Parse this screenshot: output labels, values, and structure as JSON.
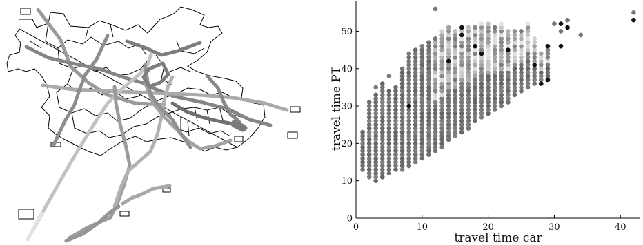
{
  "colors": {
    "background": "#ffffff",
    "axis": "#000000",
    "district_outline": "#000000",
    "point_dark": "#111111",
    "point_mid": "#777777",
    "point_light": "#dddddd"
  },
  "map_panel": {
    "type": "network-map",
    "content": "district boundaries overlaid with transit route lines drawn in shades of gray"
  },
  "chart_data": {
    "type": "scatter",
    "title": "",
    "xlabel": "travel time car",
    "ylabel": "travel time PT",
    "xlim": [
      0,
      43
    ],
    "ylim": [
      0,
      58
    ],
    "xticks": [
      0,
      10,
      20,
      30,
      40
    ],
    "yticks": [
      0,
      10,
      20,
      30,
      40,
      50
    ],
    "grid": false,
    "legend": "none",
    "point_spacing_y": 1,
    "columns": [
      {
        "x": 1,
        "y_min": 13,
        "y_max": 23
      },
      {
        "x": 2,
        "y_min": 11,
        "y_max": 31
      },
      {
        "x": 3,
        "y_min": 10,
        "y_max": 33
      },
      {
        "x": 4,
        "y_min": 11,
        "y_max": 36
      },
      {
        "x": 5,
        "y_min": 12,
        "y_max": 34
      },
      {
        "x": 6,
        "y_min": 13,
        "y_max": 35
      },
      {
        "x": 7,
        "y_min": 13,
        "y_max": 40
      },
      {
        "x": 8,
        "y_min": 14,
        "y_max": 44
      },
      {
        "x": 9,
        "y_min": 15,
        "y_max": 45
      },
      {
        "x": 10,
        "y_min": 16,
        "y_max": 46
      },
      {
        "x": 11,
        "y_min": 17,
        "y_max": 47
      },
      {
        "x": 12,
        "y_min": 18,
        "y_max": 48
      },
      {
        "x": 13,
        "y_min": 19,
        "y_max": 50
      },
      {
        "x": 14,
        "y_min": 21,
        "y_max": 51
      },
      {
        "x": 15,
        "y_min": 22,
        "y_max": 50
      },
      {
        "x": 16,
        "y_min": 23,
        "y_max": 50
      },
      {
        "x": 17,
        "y_min": 24,
        "y_max": 51
      },
      {
        "x": 18,
        "y_min": 26,
        "y_max": 51
      },
      {
        "x": 19,
        "y_min": 27,
        "y_max": 52
      },
      {
        "x": 20,
        "y_min": 28,
        "y_max": 52
      },
      {
        "x": 21,
        "y_min": 29,
        "y_max": 51
      },
      {
        "x": 22,
        "y_min": 30,
        "y_max": 52
      },
      {
        "x": 23,
        "y_min": 31,
        "y_max": 50
      },
      {
        "x": 24,
        "y_min": 33,
        "y_max": 50
      },
      {
        "x": 25,
        "y_min": 34,
        "y_max": 50
      },
      {
        "x": 26,
        "y_min": 35,
        "y_max": 52
      },
      {
        "x": 27,
        "y_min": 36,
        "y_max": 48
      },
      {
        "x": 28,
        "y_min": 36,
        "y_max": 44
      },
      {
        "x": 29,
        "y_min": 38,
        "y_max": 46
      }
    ],
    "extra_points": [
      {
        "x": 12,
        "y": 56,
        "shade": "mid"
      },
      {
        "x": 30,
        "y": 52,
        "shade": "mid"
      },
      {
        "x": 31,
        "y": 50,
        "shade": "mid"
      },
      {
        "x": 32,
        "y": 53,
        "shade": "mid"
      },
      {
        "x": 34,
        "y": 49,
        "shade": "mid"
      },
      {
        "x": 42,
        "y": 55,
        "shade": "mid"
      },
      {
        "x": 16,
        "y": 51,
        "shade": "dark"
      },
      {
        "x": 16,
        "y": 49,
        "shade": "dark"
      },
      {
        "x": 14,
        "y": 42,
        "shade": "dark"
      },
      {
        "x": 18,
        "y": 46,
        "shade": "dark"
      },
      {
        "x": 19,
        "y": 44,
        "shade": "dark"
      },
      {
        "x": 23,
        "y": 45,
        "shade": "dark"
      },
      {
        "x": 27,
        "y": 41,
        "shade": "dark"
      },
      {
        "x": 28,
        "y": 36,
        "shade": "dark"
      },
      {
        "x": 29,
        "y": 37,
        "shade": "dark"
      },
      {
        "x": 29,
        "y": 46,
        "shade": "dark"
      },
      {
        "x": 31,
        "y": 46,
        "shade": "dark"
      },
      {
        "x": 31,
        "y": 52,
        "shade": "dark"
      },
      {
        "x": 32,
        "y": 51,
        "shade": "dark"
      },
      {
        "x": 42,
        "y": 53,
        "shade": "dark"
      },
      {
        "x": 8,
        "y": 30,
        "shade": "dark"
      },
      {
        "x": 5,
        "y": 38,
        "shade": "mid"
      },
      {
        "x": 3,
        "y": 35,
        "shade": "mid"
      }
    ]
  }
}
